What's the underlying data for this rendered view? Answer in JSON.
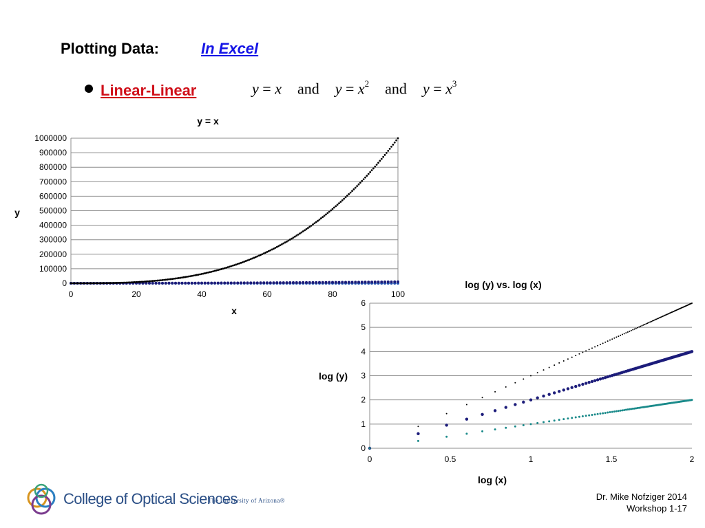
{
  "slide": {
    "heading": "Plotting Data:",
    "heading_link": "In Excel",
    "bullet": "Linear-Linear",
    "equation": {
      "eq1_lhs": "y",
      "eq1_eq": "=",
      "eq1_rhs": "x",
      "and1": "and",
      "eq2_lhs": "y",
      "eq2_eq": "=",
      "eq2_rhs": "x",
      "eq2_exp": "2",
      "and2": "and",
      "eq3_lhs": "y",
      "eq3_eq": "=",
      "eq3_rhs": "x",
      "eq3_exp": "3"
    }
  },
  "colors": {
    "text": "#000000",
    "link": "#1515e6",
    "bullet": "#d0101a",
    "series_linear": "#1f4fb0",
    "series_square": "#1c1c7a",
    "series_cube": "#000000",
    "series_sqrt": "#1a8a8a",
    "gridline": "#8c8c8c",
    "logo_blue": "#2b4f86"
  },
  "chart_data": [
    {
      "type": "scatter",
      "title": "y = x",
      "xlabel": "x",
      "ylabel": "y",
      "xlim": [
        0,
        100
      ],
      "ylim": [
        0,
        1000000
      ],
      "x_ticks": [
        "0",
        "20",
        "40",
        "60",
        "80",
        "100"
      ],
      "y_ticks": [
        "0",
        "100000",
        "200000",
        "300000",
        "400000",
        "500000",
        "600000",
        "700000",
        "800000",
        "900000",
        "1000000"
      ],
      "grid": "horizontal",
      "series": [
        {
          "function": "x",
          "x_range": [
            0,
            100
          ],
          "step": 1,
          "color": "#1f4fb0",
          "marker": "dot"
        },
        {
          "function": "x^2",
          "x_range": [
            0,
            100
          ],
          "step": 1,
          "color": "#1c1c7a",
          "marker": "dot"
        },
        {
          "function": "x^3",
          "x_range": [
            0,
            100
          ],
          "step": 0.5,
          "color": "#000000",
          "marker": "dot"
        }
      ]
    },
    {
      "type": "scatter",
      "title": "log (y) vs. log (x)",
      "xlabel": "log (x)",
      "ylabel": "log (y)",
      "xlim": [
        0,
        2
      ],
      "ylim": [
        0,
        6
      ],
      "x_ticks": [
        "0",
        "0.5",
        "1",
        "1.5",
        "2"
      ],
      "y_ticks": [
        "0",
        "1",
        "2",
        "3",
        "4",
        "5",
        "6"
      ],
      "grid": "horizontal",
      "series": [
        {
          "slope": 3,
          "x_values": "log10(n), n = 1 to 100",
          "color": "#000000",
          "marker": "tiny"
        },
        {
          "slope": 2,
          "x_values": "log10(n), n = 1 to 100",
          "color": "#1c1c7a",
          "marker": "dot"
        },
        {
          "slope": 1,
          "x_values": "log10(n), n = 1 to 100",
          "color": "#1a8a8a",
          "marker": "small"
        }
      ]
    }
  ],
  "logo": {
    "name": "College of Optical Sciences",
    "subtitle": "The University of Arizona®"
  },
  "footer": {
    "author": "Dr. Mike Nofziger   2014",
    "page": "Workshop 1-17"
  }
}
